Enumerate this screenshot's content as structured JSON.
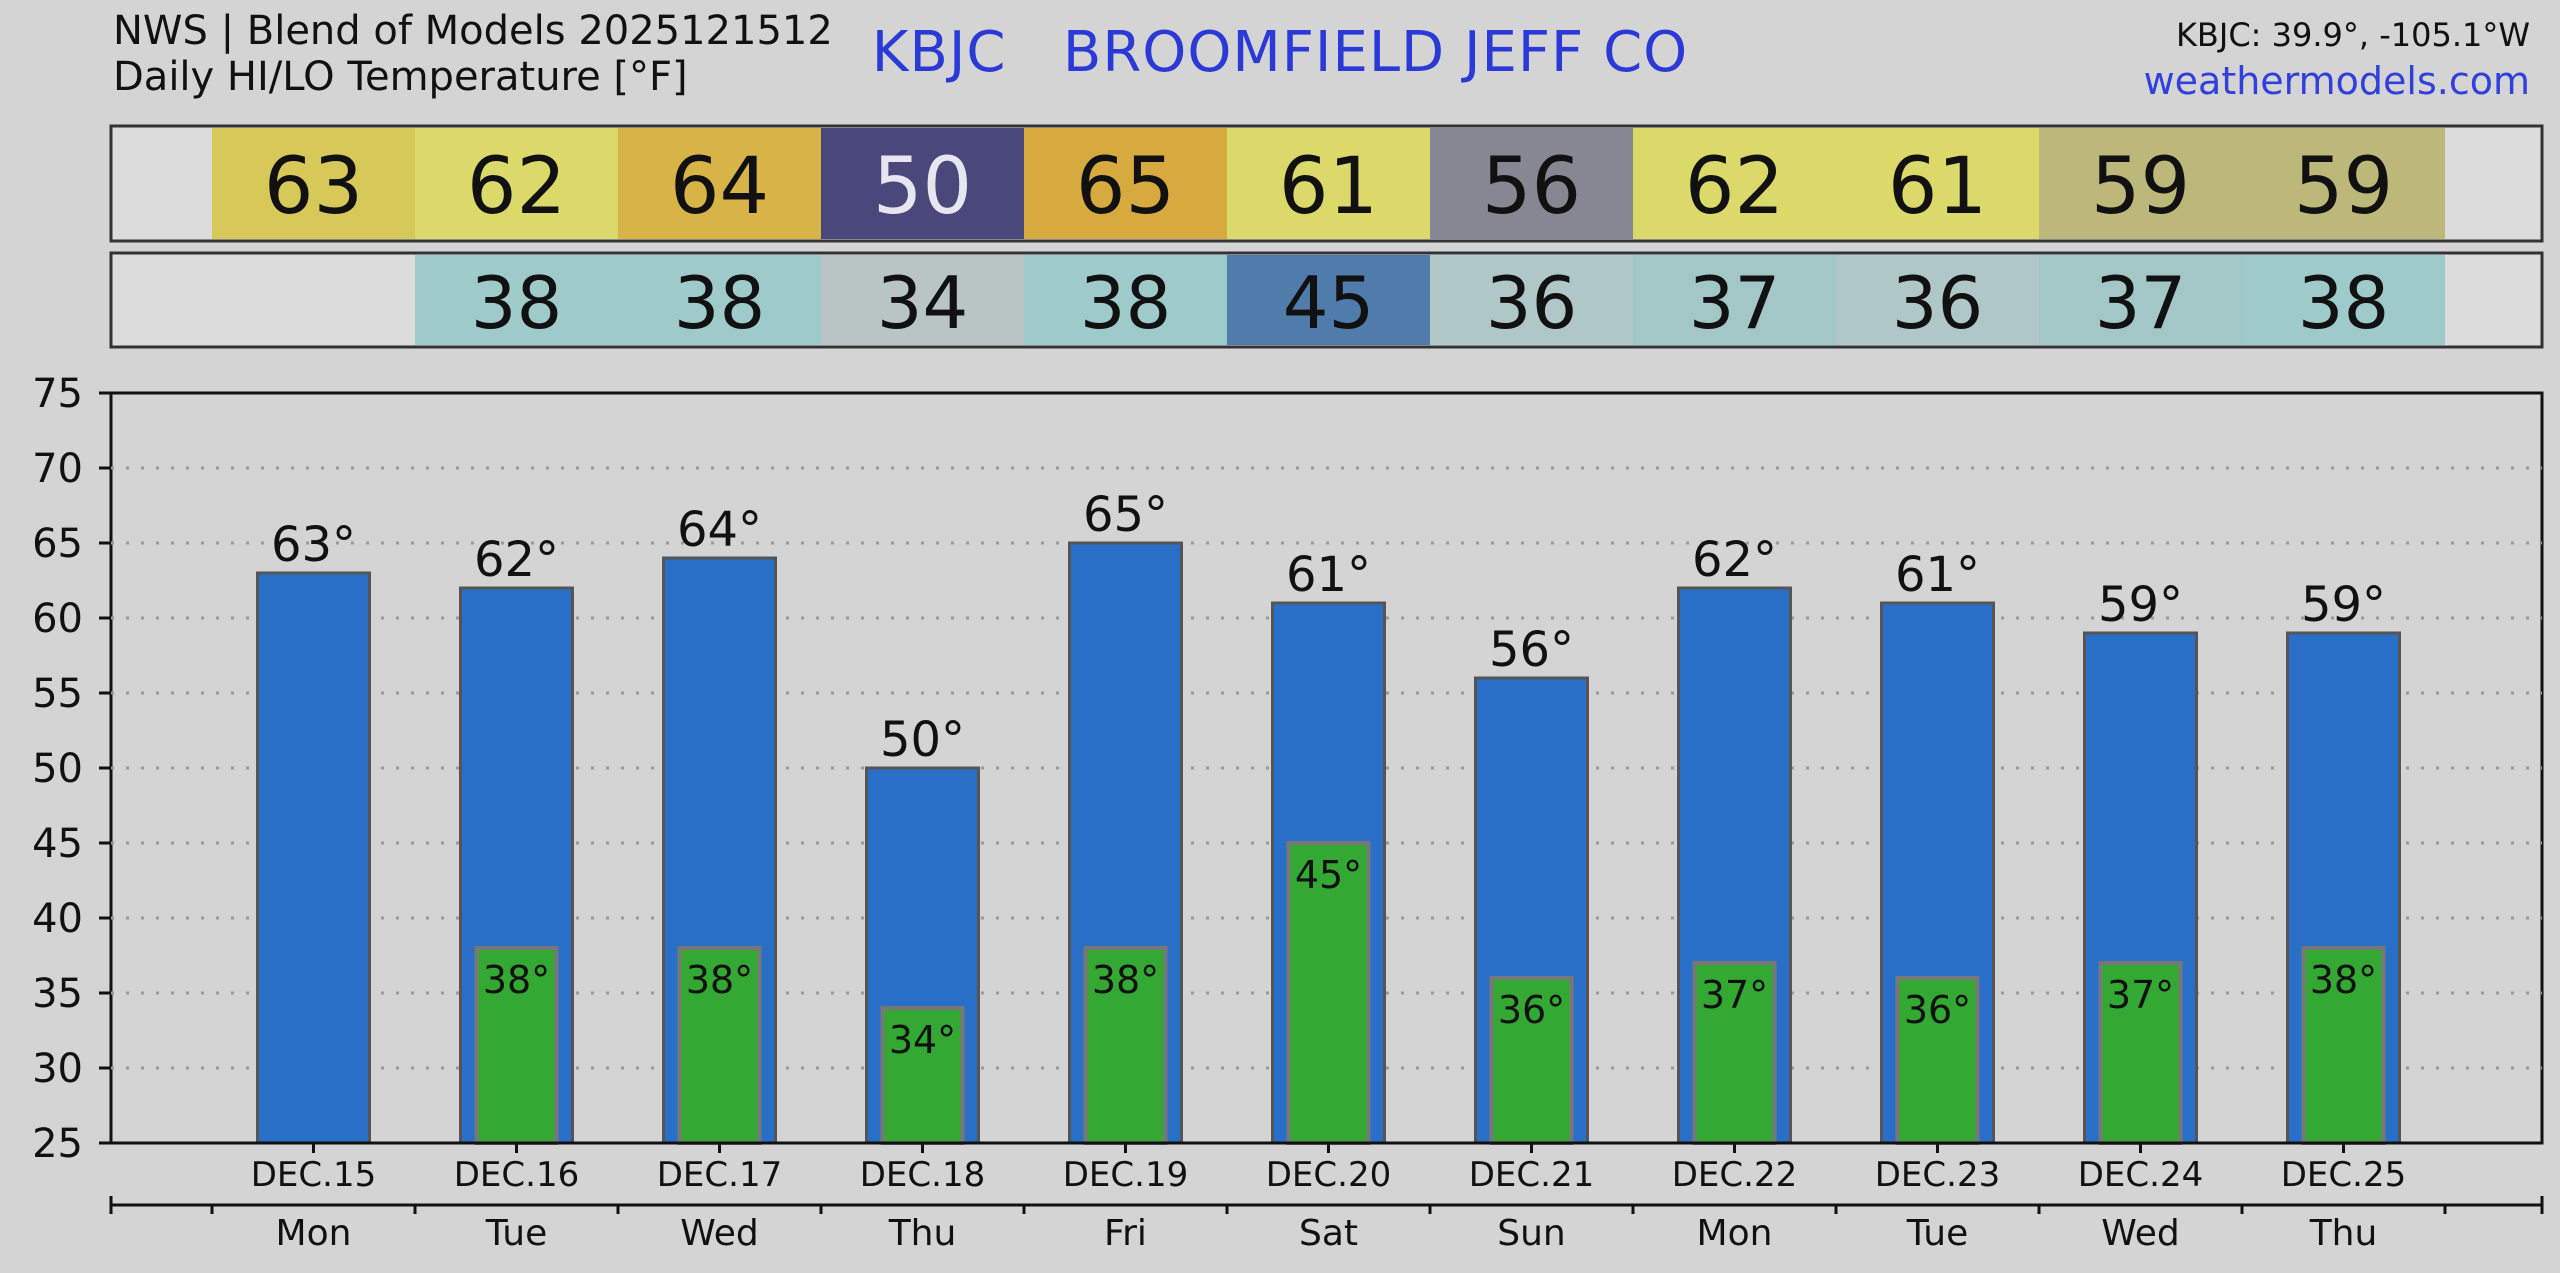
{
  "header": {
    "source": "NWS | Blend of Models 2025121512",
    "subtitle": "Daily HI/LO Temperature [°F]",
    "station_title": "KBJC   BROOMFIELD JEFF CO",
    "coords": "KBJC: 39.9°, -105.1°W",
    "site": "weathermodels.com"
  },
  "colors": {
    "hi_bar": "#2a6fc7",
    "lo_bar": "#33a833",
    "hi_cells": [
      "#d6c95a",
      "#dad96a",
      "#d8b448",
      "#4a477a",
      "#d6aa3e",
      "#dad96a",
      "#878794",
      "#dad96a",
      "#dad96a",
      "#bbb87a",
      "#bbb87a"
    ],
    "lo_cells": [
      null,
      "#9fcaca",
      "#9fcaca",
      "#b9c5c5",
      "#9fcaca",
      "#4f7caa",
      "#b0c7c7",
      "#a3c6c7",
      "#b0c7c7",
      "#a3c6c7",
      "#9fcaca"
    ]
  },
  "chart_data": {
    "type": "bar",
    "title": "Daily HI/LO Temperature [°F]",
    "categories": [
      "DEC.15",
      "DEC.16",
      "DEC.17",
      "DEC.18",
      "DEC.19",
      "DEC.20",
      "DEC.21",
      "DEC.22",
      "DEC.23",
      "DEC.24",
      "DEC.25"
    ],
    "weekdays": [
      "Mon",
      "Tue",
      "Wed",
      "Thu",
      "Fri",
      "Sat",
      "Sun",
      "Mon",
      "Tue",
      "Wed",
      "Thu"
    ],
    "series": [
      {
        "name": "HI",
        "values": [
          63,
          62,
          64,
          50,
          65,
          61,
          56,
          62,
          61,
          59,
          59
        ]
      },
      {
        "name": "LO",
        "values": [
          null,
          38,
          38,
          34,
          38,
          45,
          36,
          37,
          36,
          37,
          38
        ]
      }
    ],
    "ylim": [
      25,
      75
    ],
    "yticks": [
      25,
      30,
      35,
      40,
      45,
      50,
      55,
      60,
      65,
      70,
      75
    ],
    "grid": true
  }
}
